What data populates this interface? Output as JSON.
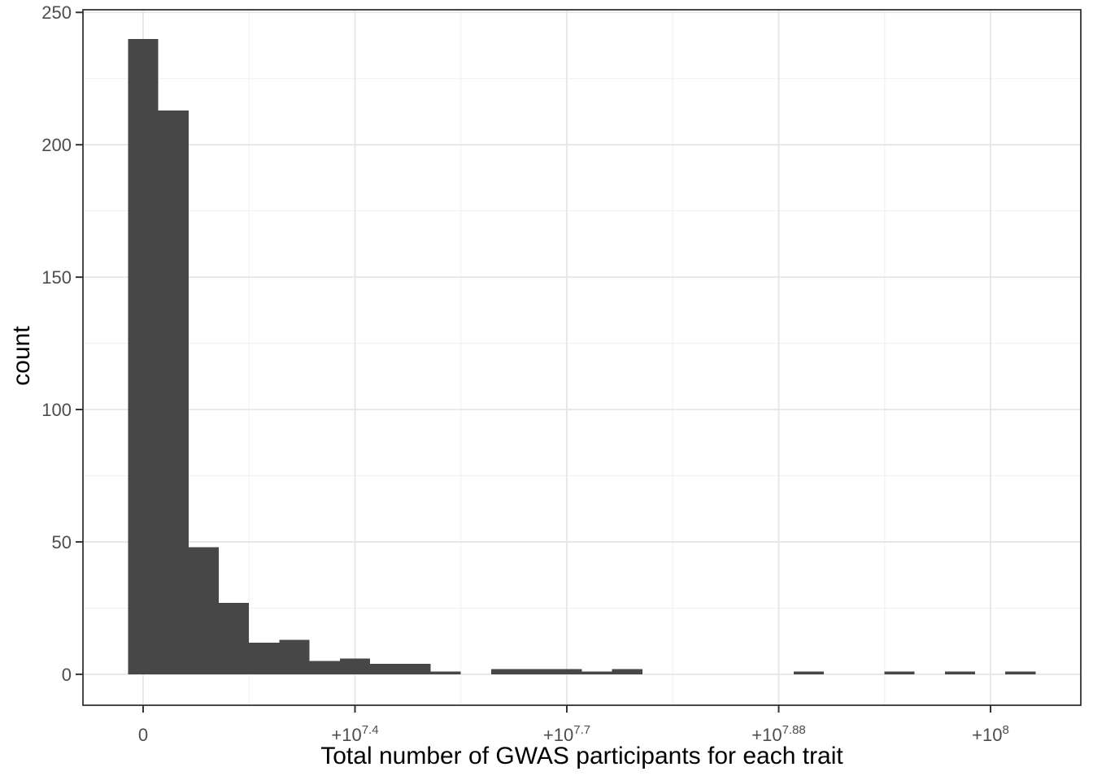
{
  "chart_data": {
    "type": "histogram",
    "title": "",
    "xlabel": "Total number of GWAS participants for each trait",
    "ylabel": "count",
    "grid": {
      "major": true,
      "minor": true
    },
    "legend": "none",
    "xlim": [
      -7100000,
      110650000
    ],
    "ylim": [
      -11.7,
      251
    ],
    "bin_width": 3570000,
    "first_bin_center": 0,
    "counts": [
      240,
      213,
      48,
      27,
      12,
      13,
      5,
      6,
      4,
      4,
      1,
      0,
      2,
      2,
      2,
      1,
      2,
      0,
      0,
      0,
      0,
      0,
      1,
      0,
      0,
      1,
      0,
      1,
      0,
      1
    ],
    "x_ticks": [
      {
        "value": 0,
        "label": "0",
        "exponent": ""
      },
      {
        "value": 25000000,
        "label": "+10",
        "exponent": "7.4"
      },
      {
        "value": 50000000,
        "label": "+10",
        "exponent": "7.7"
      },
      {
        "value": 75000000,
        "label": "+10",
        "exponent": "7.88"
      },
      {
        "value": 100000000,
        "label": "+10",
        "exponent": "8"
      }
    ],
    "y_ticks": [
      {
        "value": 0,
        "label": "0"
      },
      {
        "value": 50,
        "label": "50"
      },
      {
        "value": 100,
        "label": "100"
      },
      {
        "value": 150,
        "label": "150"
      },
      {
        "value": 200,
        "label": "200"
      },
      {
        "value": 250,
        "label": "250"
      }
    ],
    "colors": {
      "bar": "#474747",
      "panel_border": "#333333",
      "tick_mark": "#333333",
      "grid_major": "#e6e6e6",
      "grid_minor": "#f1f1f1",
      "tick_label": "#4d4d4d",
      "axis_title": "#000000",
      "background": "#ffffff"
    }
  }
}
